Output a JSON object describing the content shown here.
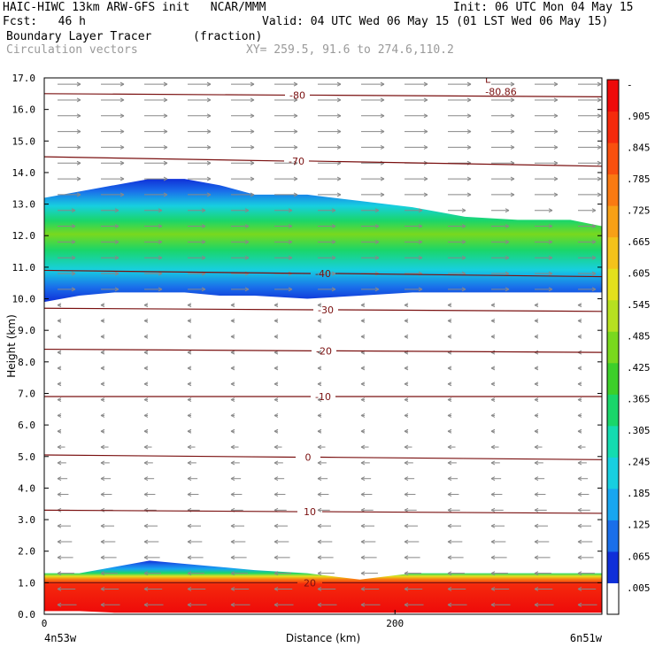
{
  "header": {
    "line1_left": "HAIC-HIWC 13km ARW-GFS init   NCAR/MMM",
    "line1_right": "Init: 06 UTC Mon 04 May 15",
    "line2_left": "Fcst:   46 h",
    "line2_right": "Valid: 04 UTC Wed 06 May 15 (01 LST Wed 06 May 15)",
    "field_name": "Boundary Layer Tracer",
    "field_units": "(fraction)",
    "vector_name": "Circulation vectors",
    "xy_range": "XY= 259.5, 91.6 to 274.6,110.2"
  },
  "chart_data": {
    "type": "heatmap",
    "xlabel": "Distance (km)",
    "ylabel": "Height (km)",
    "xlim": [
      0,
      318
    ],
    "ylim": [
      0,
      17
    ],
    "x_ticks": [
      "0",
      "200"
    ],
    "x_tick_values": [
      0,
      200
    ],
    "x_end_labels": [
      "4n53w",
      "6n51w"
    ],
    "y_ticks": [
      "0.0",
      "1.0",
      "2.0",
      "3.0",
      "4.0",
      "5.0",
      "6.0",
      "7.0",
      "8.0",
      "9.0",
      "10.0",
      "11.0",
      "12.0",
      "13.0",
      "14.0",
      "15.0",
      "16.0",
      "17.0"
    ],
    "colorbar": {
      "labels": [
        "-",
        ".905",
        ".845",
        ".785",
        ".725",
        ".665",
        ".605",
        ".545",
        ".485",
        ".425",
        ".365",
        ".305",
        ".245",
        ".185",
        ".125",
        ".065",
        ".005"
      ],
      "colors": [
        "#ffffff",
        "#0f2fd8",
        "#1a6fea",
        "#17a6f0",
        "#17cfe0",
        "#14dcb0",
        "#1ad66a",
        "#3dcf2a",
        "#79d81e",
        "#b6e020",
        "#e4e01c",
        "#f4c21a",
        "#f8a016",
        "#fa7a12",
        "#f9500e",
        "#f52a0c",
        "#ee0a0a"
      ]
    },
    "tracer_layers": [
      {
        "name": "upper-outflow",
        "x": [
          0,
          20,
          40,
          60,
          80,
          100,
          120,
          150,
          180,
          210,
          240,
          270,
          300,
          318
        ],
        "top": [
          13.2,
          13.4,
          13.6,
          13.8,
          13.8,
          13.6,
          13.3,
          13.3,
          13.1,
          12.9,
          12.6,
          12.5,
          12.5,
          12.3
        ],
        "bottom": [
          9.9,
          10.1,
          10.2,
          10.2,
          10.2,
          10.1,
          10.1,
          10.0,
          10.1,
          10.2,
          10.2,
          10.2,
          10.2,
          10.2
        ],
        "peak": 0.4
      },
      {
        "name": "boundary-layer",
        "x": [
          0,
          20,
          40,
          60,
          80,
          100,
          120,
          150,
          180,
          210,
          240,
          270,
          300,
          318
        ],
        "top": [
          1.3,
          1.3,
          1.5,
          1.7,
          1.6,
          1.5,
          1.4,
          1.3,
          1.1,
          1.3,
          1.3,
          1.3,
          1.3,
          1.3
        ],
        "bottom": [
          0.1,
          0.1,
          0.05,
          0.05,
          0.05,
          0.05,
          0.05,
          0.05,
          0.05,
          0.05,
          0.05,
          0.05,
          0.05,
          0.05
        ],
        "peak": 0.99
      }
    ],
    "temperature_contours": [
      {
        "label": "-80",
        "height_left": 16.5,
        "height_right": 16.4
      },
      {
        "label": "-80.86",
        "height_left": null,
        "height_right": null
      },
      {
        "label": "-70",
        "height_left": 14.5,
        "height_right": 14.2
      },
      {
        "label": "-40",
        "height_left": 10.9,
        "height_right": 10.7
      },
      {
        "label": "-30",
        "height_left": 9.7,
        "height_right": 9.6
      },
      {
        "label": "-20",
        "height_left": 8.4,
        "height_right": 8.3
      },
      {
        "label": "-10",
        "height_left": 6.9,
        "height_right": 6.9
      },
      {
        "label": "0",
        "height_left": 5.05,
        "height_right": 4.9
      },
      {
        "label": "10",
        "height_left": 3.3,
        "height_right": 3.2
      },
      {
        "label": "20",
        "height_left": 1.0,
        "height_right": 1.0
      }
    ],
    "extra_labels": [
      "L"
    ],
    "grid": false,
    "legend": "colorbar-right"
  }
}
